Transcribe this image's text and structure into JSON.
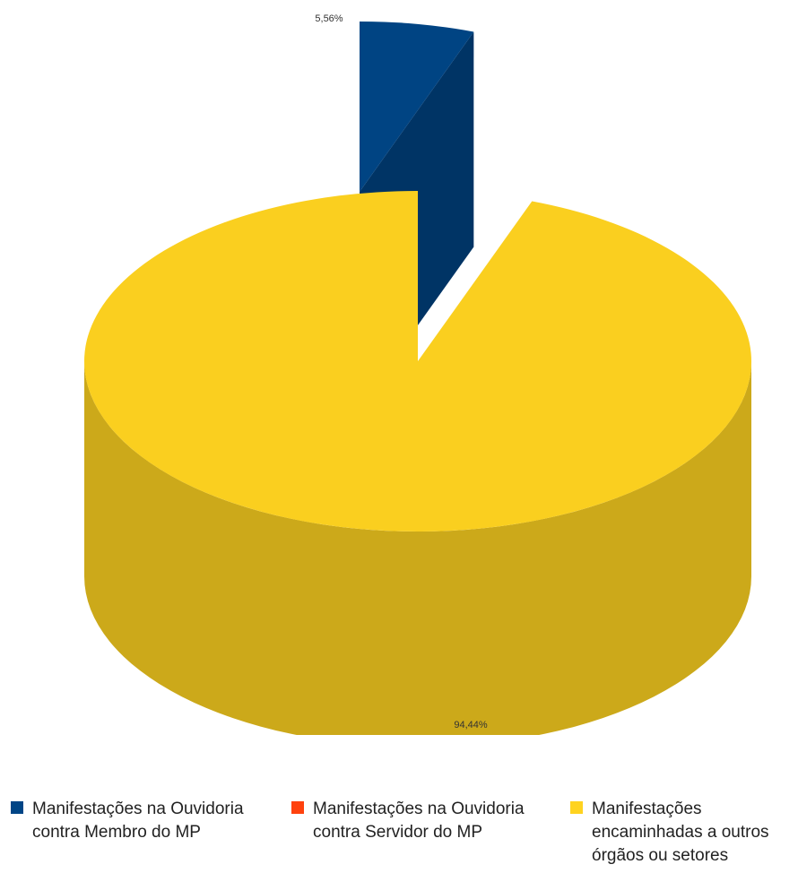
{
  "chart_data": {
    "type": "pie",
    "style": "3d-exploded",
    "slices": [
      {
        "label_lines": [
          "Manifestações na Ouvidoria",
          "contra Membro do MP"
        ],
        "value": 5.56,
        "value_label": "5,56%",
        "color": "#004586"
      },
      {
        "label_lines": [
          "Manifestações na Ouvidoria",
          "contra Servidor do MP"
        ],
        "value": 0,
        "value_label": "",
        "color": "#ff420e"
      },
      {
        "label_lines": [
          "Manifestações",
          "encaminhadas a outros",
          "órgãos ou setores"
        ],
        "value": 94.44,
        "value_label": "94,44%",
        "color": "#ffd320"
      }
    ],
    "legend_position": "bottom"
  }
}
